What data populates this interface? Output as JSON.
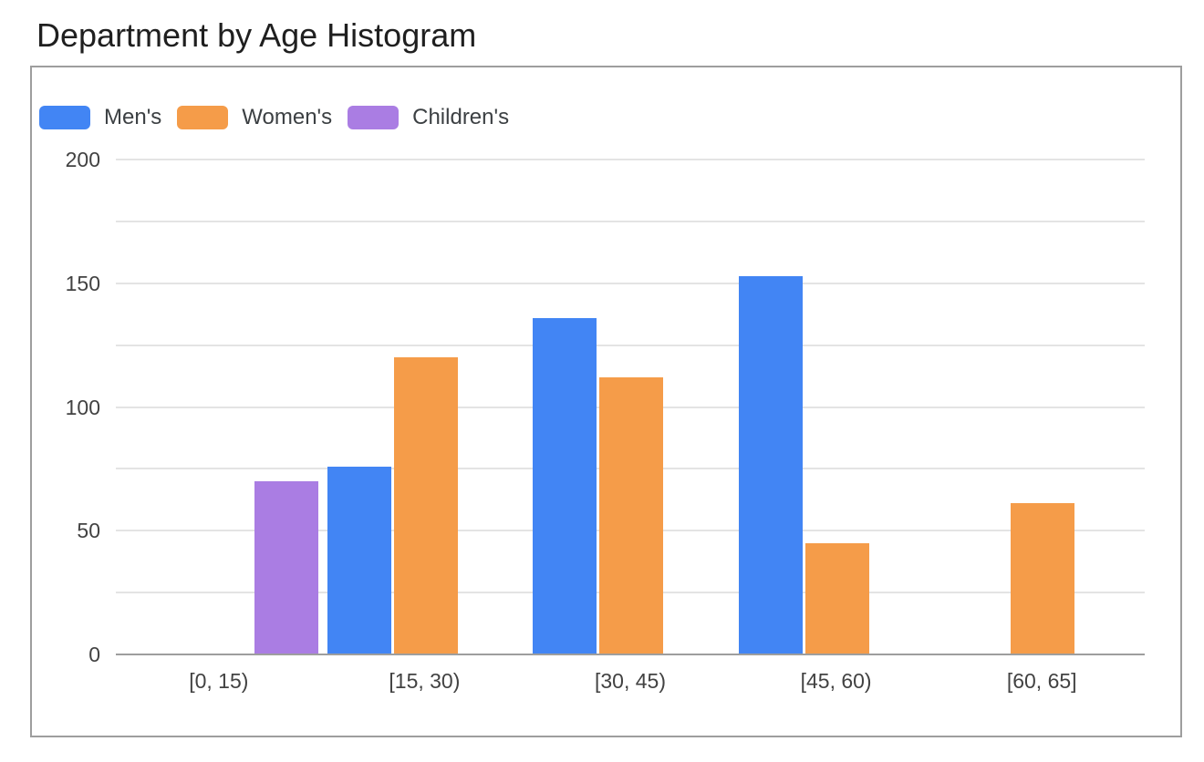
{
  "chart_data": {
    "type": "bar",
    "subtype": "histogram",
    "title": "Department by Age Histogram",
    "categories": [
      "[0, 15)",
      "[15, 30)",
      "[30, 45)",
      "[45, 60)",
      "[60, 65]"
    ],
    "series": [
      {
        "name": "Men's",
        "color": "#4285F4",
        "values": [
          0,
          76,
          136,
          153,
          0
        ]
      },
      {
        "name": "Women's",
        "color": "#F59C49",
        "values": [
          0,
          120,
          112,
          45,
          61
        ]
      },
      {
        "name": "Children's",
        "color": "#AA7DE3",
        "values": [
          70,
          0,
          0,
          0,
          0
        ]
      }
    ],
    "xlabel": "",
    "ylabel": "",
    "ylim": [
      0,
      200
    ],
    "yticks_labeled": [
      0,
      50,
      100,
      150,
      200
    ],
    "gridline_step": 25,
    "grid": true,
    "legend_position": "top-left",
    "axis_text_color": "#424242",
    "gridline_color": "#e4e4e4",
    "baseline_color": "#9e9e9e",
    "border_color": "#9e9e9e"
  }
}
